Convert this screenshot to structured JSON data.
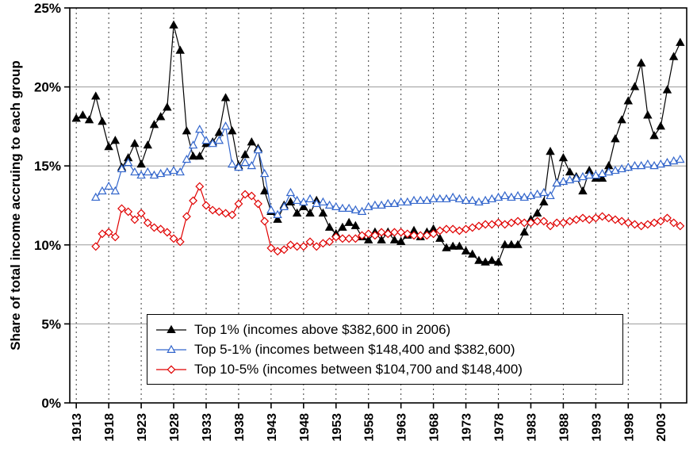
{
  "page": {
    "background": "#ffffff"
  },
  "chart_data": {
    "type": "line",
    "title": "",
    "xlabel": "",
    "ylabel": "Share of total income accruing to each group",
    "xlim": [
      1912,
      2007
    ],
    "ylim": [
      0,
      25
    ],
    "grid": {
      "horizontal": "solid",
      "vertical": "dashed"
    },
    "legend_position": "inside-bottom-center",
    "y_tick_values": [
      0,
      5,
      10,
      15,
      20,
      25
    ],
    "y_tick_labels": [
      "0%",
      "5%",
      "10%",
      "15%",
      "20%",
      "25%"
    ],
    "x_tick_values": [
      1913,
      1918,
      1923,
      1928,
      1933,
      1938,
      1943,
      1948,
      1953,
      1958,
      1963,
      1968,
      1973,
      1978,
      1983,
      1988,
      1993,
      1998,
      2003
    ],
    "x_tick_labels": [
      "1913",
      "1918",
      "1923",
      "1928",
      "1933",
      "1938",
      "1943",
      "1948",
      "1953",
      "1958",
      "1963",
      "1968",
      "1973",
      "1978",
      "1983",
      "1988",
      "1993",
      "1998",
      "2003"
    ],
    "series": [
      {
        "name": "Top 1% (incomes above $382,600 in 2006)",
        "marker": "triangle-filled",
        "color": "#000000",
        "fill": "#000000",
        "start_year": 1913,
        "values": [
          18.0,
          18.2,
          17.9,
          19.4,
          17.8,
          16.2,
          16.6,
          14.9,
          15.5,
          16.4,
          15.1,
          16.3,
          17.6,
          18.1,
          18.7,
          23.9,
          22.3,
          17.2,
          15.6,
          15.6,
          16.4,
          16.5,
          17.1,
          19.3,
          17.2,
          15.0,
          15.7,
          16.5,
          16.1,
          13.4,
          12.1,
          11.6,
          12.5,
          12.7,
          12.0,
          12.4,
          12.0,
          12.8,
          12.0,
          11.1,
          10.7,
          11.1,
          11.4,
          11.2,
          10.5,
          10.3,
          10.8,
          10.3,
          10.8,
          10.3,
          10.2,
          10.6,
          10.9,
          10.5,
          10.8,
          11.0,
          10.4,
          9.8,
          9.9,
          9.9,
          9.6,
          9.4,
          9.0,
          8.9,
          9.0,
          8.9,
          10.0,
          10.0,
          10.0,
          10.8,
          11.6,
          12.0,
          12.7,
          15.9,
          13.9,
          15.5,
          14.6,
          14.3,
          13.4,
          14.7,
          14.2,
          14.2,
          15.0,
          16.7,
          17.9,
          19.1,
          20.0,
          21.5,
          18.2,
          16.9,
          17.5,
          19.8,
          21.9,
          22.8
        ]
      },
      {
        "name": "Top 5-1% (incomes between $148,400 and $382,600)",
        "marker": "triangle-open",
        "color": "#3366CC",
        "fill": "#FFFFFF",
        "start_year": 1916,
        "values": [
          13.0,
          13.4,
          13.7,
          13.4,
          14.8,
          15.2,
          14.6,
          14.4,
          14.6,
          14.4,
          14.5,
          14.6,
          14.7,
          14.6,
          15.4,
          16.3,
          17.3,
          16.6,
          16.4,
          16.6,
          17.5,
          15.1,
          14.9,
          15.2,
          15.0,
          16.0,
          14.5,
          12.2,
          11.9,
          12.4,
          13.3,
          12.8,
          12.7,
          12.9,
          12.6,
          12.7,
          12.5,
          12.4,
          12.3,
          12.3,
          12.2,
          12.1,
          12.4,
          12.5,
          12.5,
          12.6,
          12.6,
          12.7,
          12.7,
          12.8,
          12.8,
          12.8,
          12.9,
          12.9,
          12.9,
          13.0,
          12.9,
          12.8,
          12.8,
          12.7,
          12.8,
          12.9,
          13.0,
          13.1,
          13.0,
          13.1,
          13.0,
          13.1,
          13.2,
          13.3,
          13.1,
          13.9,
          14.0,
          14.1,
          14.2,
          14.3,
          14.4,
          14.4,
          14.5,
          14.6,
          14.7,
          14.8,
          14.9,
          15.0,
          15.0,
          15.1,
          15.0,
          15.1,
          15.2,
          15.3,
          15.4
        ]
      },
      {
        "name": "Top 10-5% (incomes between $104,700 and $148,400)",
        "marker": "diamond-open",
        "color": "#E00000",
        "fill": "#FFFFFF",
        "start_year": 1916,
        "values": [
          9.9,
          10.7,
          10.8,
          10.5,
          12.3,
          12.1,
          11.6,
          12.0,
          11.4,
          11.1,
          11.0,
          10.8,
          10.4,
          10.2,
          11.8,
          12.8,
          13.7,
          12.5,
          12.2,
          12.1,
          12.0,
          11.9,
          12.6,
          13.2,
          13.1,
          12.6,
          11.5,
          9.8,
          9.6,
          9.7,
          10.0,
          9.9,
          9.9,
          10.2,
          9.9,
          10.1,
          10.2,
          10.5,
          10.4,
          10.4,
          10.4,
          10.6,
          10.7,
          10.6,
          10.8,
          10.7,
          10.8,
          10.8,
          10.7,
          10.6,
          10.6,
          10.6,
          10.7,
          10.9,
          11.0,
          11.0,
          10.9,
          11.0,
          11.1,
          11.2,
          11.3,
          11.3,
          11.4,
          11.3,
          11.4,
          11.5,
          11.4,
          11.4,
          11.5,
          11.5,
          11.2,
          11.4,
          11.4,
          11.5,
          11.6,
          11.7,
          11.6,
          11.7,
          11.8,
          11.7,
          11.6,
          11.5,
          11.4,
          11.3,
          11.2,
          11.3,
          11.4,
          11.5,
          11.7,
          11.4,
          11.2
        ]
      }
    ]
  }
}
